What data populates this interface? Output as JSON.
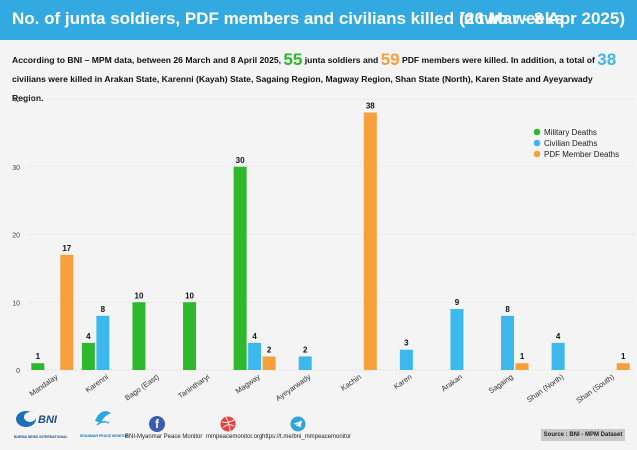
{
  "header": {
    "title": "No. of junta soldiers, PDF members and civilians killed in two weeks",
    "date_range": "(26 Mar - 8 Apr 2025)"
  },
  "summary": {
    "part1": "According to BNI – MPM data, between 26 March and 8 April 2025, ",
    "junta_count": "55",
    "part2": " junta soldiers and ",
    "pdf_count": "59",
    "part3": " PDF members were killed. In addition, a total of ",
    "civilian_count": "38",
    "part4": " civilians were killed in Arakan State, Karenni (Kayah) State, Sagaing Region, Magway Region, Shan State (North), Karen State and Ayeyarwady Region."
  },
  "footer": {
    "logo1_text": "BURMA NEWS INTERNATIONAL",
    "logo2_text": "MYANMAR PEACE MONITOR",
    "facebook": "BNI-Myanmar Peace Monitor",
    "website": "mmpeacemonitor.org",
    "telegram": "https://t.me/bni_mmpeacemonitor",
    "source": "Source : BNI - MPM Dataset"
  },
  "colors": {
    "military": "#2eb82e",
    "civilian": "#3db8ec",
    "pdf": "#f5a03a",
    "header": "#33a9e1"
  },
  "chart_data": {
    "type": "bar",
    "categories": [
      "Mandalay",
      "Karenni",
      "Bago (East)",
      "Tanintharyi",
      "Magway",
      "Ayeyarwady",
      "Kachin",
      "Karen",
      "Arakan",
      "Sagaing",
      "Shan (North)",
      "Shan (South)"
    ],
    "series": [
      {
        "name": "Military Deaths",
        "color": "#2eb82e",
        "values": [
          1,
          4,
          10,
          10,
          30,
          null,
          null,
          null,
          null,
          null,
          null,
          null
        ]
      },
      {
        "name": "Civilian Deaths",
        "color": "#3db8ec",
        "values": [
          null,
          8,
          null,
          null,
          4,
          2,
          null,
          3,
          9,
          8,
          4,
          null
        ]
      },
      {
        "name": "PDF Member Deaths",
        "color": "#f5a03a",
        "values": [
          17,
          null,
          null,
          null,
          2,
          null,
          38,
          null,
          null,
          1,
          null,
          1
        ]
      }
    ],
    "yticks": [
      0,
      10,
      20,
      30,
      40
    ],
    "ylim": [
      0,
      40
    ],
    "grid": true,
    "legend": "top-right"
  }
}
